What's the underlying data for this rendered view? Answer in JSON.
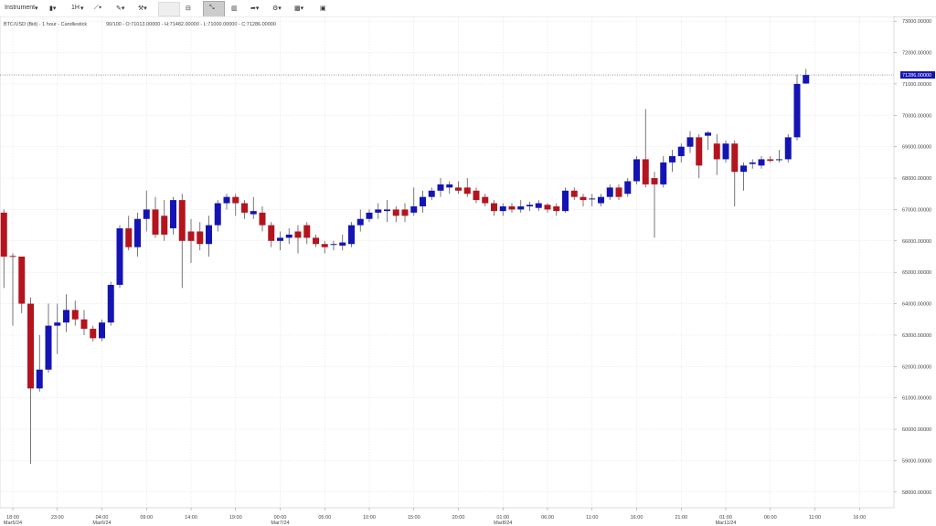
{
  "toolbar": {
    "instrument": "Instrument",
    "timeframe": "1H"
  },
  "header": {
    "description": "BTC/USD (Bid) - 1 hour - Candlestick",
    "count": "90/100",
    "ohlc": "- O:71013.00000 - H:71482.00000 - L:71000.00000 - C:71286.00000"
  },
  "chart_data": {
    "type": "candlestick",
    "categories": [
      null,
      "18:00",
      null,
      null,
      null,
      null,
      "23:00",
      null,
      null,
      null,
      null,
      "04:00",
      null,
      null,
      null,
      null,
      "09:00",
      null,
      null,
      null,
      null,
      "14:00",
      null,
      null,
      null,
      null,
      "19:00",
      null,
      null,
      null,
      null,
      "00:00",
      null,
      null,
      null,
      null,
      "05:00",
      null,
      null,
      null,
      null,
      "10:00",
      null,
      null,
      null,
      null,
      "15:00",
      null,
      null,
      null,
      null,
      "20:00",
      null,
      null,
      null,
      null,
      "01:00",
      null,
      null,
      null,
      null,
      "06:00",
      null,
      null,
      null,
      null,
      "11:00",
      null,
      null,
      null,
      null,
      "16:00",
      null,
      null,
      null,
      null,
      "21:00",
      null,
      null,
      null,
      null,
      "01:00",
      null,
      null,
      null,
      null,
      "06:00",
      null,
      null,
      null,
      null,
      "11:00",
      null,
      null,
      null,
      null,
      "16:00"
    ],
    "dates": [
      null,
      "Mar5/24",
      null,
      null,
      null,
      null,
      null,
      null,
      null,
      null,
      null,
      "Mar6/24",
      null,
      null,
      null,
      null,
      null,
      null,
      null,
      null,
      null,
      null,
      null,
      null,
      null,
      null,
      null,
      null,
      null,
      null,
      null,
      "Mar7/24",
      null,
      null,
      null,
      null,
      null,
      null,
      null,
      null,
      null,
      null,
      null,
      null,
      null,
      null,
      null,
      null,
      null,
      null,
      null,
      null,
      null,
      null,
      null,
      null,
      "Mar8/24",
      null,
      null,
      null,
      null,
      null,
      null,
      null,
      null,
      null,
      null,
      null,
      null,
      null,
      null,
      null,
      null,
      null,
      null,
      null,
      null,
      null,
      null,
      null,
      null,
      "Mar11/24",
      null,
      null,
      null,
      null,
      null,
      null,
      null,
      null,
      null,
      null,
      null,
      null,
      null,
      null,
      null
    ],
    "open": [
      66900,
      65520,
      65500,
      64000,
      61300,
      61900,
      63300,
      63400,
      63800,
      63500,
      63200,
      62900,
      63400,
      64600,
      66400,
      65800,
      66700,
      67000,
      66800,
      66400,
      67300,
      66300,
      66300,
      65900,
      66500,
      67200,
      67400,
      67200,
      66850,
      66900,
      66500,
      66000,
      66100,
      66300,
      66500,
      66100,
      65900,
      65900,
      65850,
      65900,
      66500,
      66700,
      66900,
      66950,
      67000,
      67000,
      66900,
      67100,
      67400,
      67600,
      67700,
      67700,
      67700,
      67600,
      67400,
      67200,
      66950,
      67100,
      67000,
      67100,
      67050,
      67150,
      67100,
      66950,
      67600,
      67400,
      67350,
      67200,
      67400,
      67700,
      67500,
      67900,
      68600,
      68000,
      67800,
      68500,
      68700,
      69000,
      69300,
      69350,
      69100,
      68600,
      69100,
      68200,
      68450,
      68400,
      68600,
      68600,
      68600,
      69300,
      71013,
      null,
      null,
      null,
      null,
      null,
      null
    ],
    "high": [
      67000,
      65600,
      65500,
      64200,
      63000,
      64000,
      64000,
      64300,
      64100,
      63800,
      63300,
      63500,
      64700,
      66500,
      66800,
      66900,
      67600,
      67400,
      67300,
      67400,
      67500,
      66700,
      66600,
      66800,
      67300,
      67500,
      67500,
      67300,
      67400,
      67100,
      66600,
      66300,
      66400,
      66500,
      66600,
      66200,
      66000,
      66000,
      66200,
      66600,
      67000,
      67000,
      67200,
      67300,
      67100,
      67200,
      67700,
      67600,
      67700,
      68000,
      67900,
      67900,
      68000,
      67700,
      67500,
      67300,
      67200,
      67200,
      67300,
      67250,
      67300,
      67200,
      67200,
      67700,
      67700,
      67500,
      67500,
      67500,
      67800,
      67800,
      68000,
      68700,
      70200,
      68200,
      68700,
      68900,
      69100,
      69500,
      69400,
      69500,
      69400,
      69200,
      69200,
      68500,
      68600,
      68700,
      68700,
      68900,
      69400,
      71300,
      71482,
      null,
      null,
      null,
      null,
      null,
      null
    ],
    "low": [
      64500,
      63300,
      63700,
      58900,
      61200,
      61800,
      62400,
      63100,
      63300,
      63000,
      62800,
      62800,
      63300,
      64500,
      65700,
      65500,
      66300,
      66100,
      66000,
      66200,
      64500,
      65300,
      65700,
      65500,
      66300,
      67000,
      66800,
      66700,
      66700,
      66300,
      65800,
      65700,
      65900,
      65600,
      65900,
      65800,
      65600,
      65700,
      65700,
      65800,
      66300,
      66600,
      66700,
      66600,
      66600,
      66600,
      66800,
      66900,
      67300,
      67400,
      67500,
      67500,
      67400,
      67200,
      67100,
      66800,
      66800,
      66900,
      66900,
      66950,
      66950,
      66900,
      66800,
      66900,
      67300,
      67100,
      67100,
      67100,
      67300,
      67300,
      67400,
      67800,
      67700,
      66100,
      67700,
      68200,
      68500,
      68800,
      68000,
      68900,
      68100,
      68500,
      67100,
      67600,
      68300,
      68300,
      68500,
      68500,
      68500,
      69200,
      71000,
      null,
      null,
      null,
      null,
      null,
      null
    ],
    "close": [
      65500,
      65500,
      64000,
      61300,
      61900,
      63300,
      63400,
      63800,
      63500,
      63200,
      62900,
      63400,
      64600,
      66400,
      65800,
      66700,
      67000,
      66200,
      66200,
      67300,
      66000,
      66000,
      65900,
      66500,
      67200,
      67400,
      67200,
      66900,
      66950,
      66500,
      66000,
      66100,
      66200,
      66100,
      66100,
      65900,
      65800,
      65900,
      65950,
      66500,
      66700,
      66900,
      67000,
      67000,
      66800,
      66800,
      67100,
      67400,
      67600,
      67800,
      67800,
      67600,
      67500,
      67300,
      67200,
      66950,
      67100,
      67000,
      67100,
      67150,
      67200,
      67000,
      66950,
      67600,
      67400,
      67300,
      67350,
      67400,
      67700,
      67400,
      67900,
      68600,
      67800,
      67800,
      68500,
      68700,
      69000,
      69300,
      68400,
      69450,
      68600,
      69100,
      68200,
      68400,
      68500,
      68600,
      68550,
      68600,
      69300,
      71000,
      71286,
      null,
      null,
      null,
      null,
      null,
      null
    ],
    "up_color": "#1414b4",
    "down_color": "#b4141e",
    "ylim": [
      57500,
      73150
    ],
    "yticks": [
      {
        "value": 58000,
        "label": "58000.00000"
      },
      {
        "value": 59000,
        "label": "59000.00000"
      },
      {
        "value": 60000,
        "label": "60000.00000"
      },
      {
        "value": 61000,
        "label": "61000.00000"
      },
      {
        "value": 62000,
        "label": "62000.00000"
      },
      {
        "value": 63000,
        "label": "63000.00000"
      },
      {
        "value": 64000,
        "label": "64000.00000"
      },
      {
        "value": 65000,
        "label": "65000.00000"
      },
      {
        "value": 66000,
        "label": "66000.00000"
      },
      {
        "value": 67000,
        "label": "67000.00000"
      },
      {
        "value": 68000,
        "label": "68000.00000"
      },
      {
        "value": 69000,
        "label": "69000.00000"
      },
      {
        "value": 70000,
        "label": "70000.00000"
      },
      {
        "value": 71000,
        "label": "71000.00000"
      },
      {
        "value": 72000,
        "label": "72000.00000"
      },
      {
        "value": 73000,
        "label": "73000.00000"
      }
    ],
    "last_price": {
      "value": 71286,
      "label": "71286.00000"
    },
    "grid": true
  }
}
